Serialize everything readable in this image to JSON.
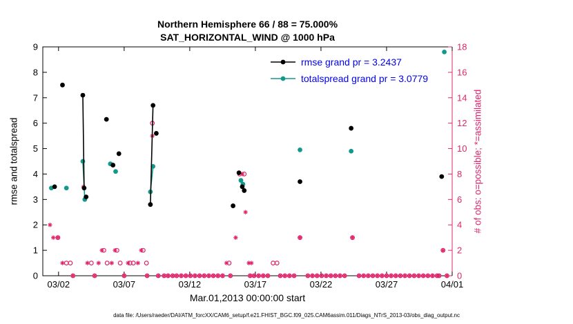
{
  "header": {
    "title_line1": "Northern Hemisphere 66 / 88 = 75.000%",
    "title_line2": "SAT_HORIZONTAL_WIND @ 1000 hPa"
  },
  "axes": {
    "xlabel": "Mar.01,2013 00:00:00 start",
    "ylabel_left": "rmse and totalspread",
    "ylabel_right": "# of obs: o=possible; *=assimilated"
  },
  "legend": {
    "items": [
      {
        "label": "rmse grand pr = 3.2437",
        "series": "rmse"
      },
      {
        "label": "totalspread grand pr = 3.0779",
        "series": "totalspread"
      }
    ]
  },
  "footer": {
    "text": "data file: /Users/raeder/DAI/ATM_forcXX/CAM6_setup/f.e21.FHIST_BGC.f09_025.CAM6assim.011/Diags_NTrS_2013-03/obs_diag_output.nc"
  },
  "colors": {
    "rmse": "#000000",
    "totalspread": "#12998c",
    "obs": "#e0246a",
    "legend_text": "#0000ee",
    "frame": "#000000"
  },
  "chart_data": {
    "type": "line",
    "x_domain_days": [
      0.8,
      32
    ],
    "x_unit": "day of March 2013 (32 = Apr 1)",
    "xticks": [
      {
        "day": 2,
        "label": "03/02"
      },
      {
        "day": 7,
        "label": "03/07"
      },
      {
        "day": 12,
        "label": "03/12"
      },
      {
        "day": 17,
        "label": "03/17"
      },
      {
        "day": 22,
        "label": "03/22"
      },
      {
        "day": 27,
        "label": "03/27"
      },
      {
        "day": 32,
        "label": "04/01"
      }
    ],
    "left_axis": {
      "range": [
        0,
        9
      ],
      "ticks": [
        0,
        1,
        2,
        3,
        4,
        5,
        6,
        7,
        8,
        9
      ]
    },
    "right_axis": {
      "range": [
        0,
        18
      ],
      "ticks": [
        0,
        2,
        4,
        6,
        8,
        10,
        12,
        14,
        16,
        18
      ]
    },
    "rmse": {
      "grand_pr": 3.2437,
      "polylines": [
        [
          [
            1.7,
            3.5
          ]
        ],
        [
          [
            2.3,
            7.5
          ]
        ],
        [
          [
            3.85,
            7.1
          ],
          [
            3.95,
            3.45
          ]
        ],
        [
          [
            4.1,
            3.1
          ]
        ],
        [
          [
            5.65,
            6.15
          ]
        ],
        [
          [
            6.15,
            4.35
          ]
        ],
        [
          [
            6.6,
            4.8
          ]
        ],
        [
          [
            9.0,
            2.8
          ],
          [
            9.2,
            6.7
          ]
        ],
        [
          [
            9.45,
            5.6
          ]
        ],
        [
          [
            15.3,
            2.75
          ]
        ],
        [
          [
            15.75,
            4.05
          ]
        ],
        [
          [
            16.0,
            3.5
          ],
          [
            16.15,
            3.35
          ]
        ],
        [
          [
            20.4,
            3.7
          ]
        ],
        [
          [
            24.3,
            5.8
          ]
        ],
        [
          [
            31.2,
            3.9
          ]
        ]
      ]
    },
    "totalspread": {
      "grand_pr": 3.0779,
      "polylines": [
        [
          [
            1.45,
            3.45
          ]
        ],
        [
          [
            2.6,
            3.45
          ]
        ],
        [
          [
            3.85,
            4.5
          ],
          [
            4.0,
            3.0
          ]
        ],
        [
          [
            5.95,
            4.4
          ]
        ],
        [
          [
            6.35,
            4.1
          ]
        ],
        [
          [
            9.0,
            3.3
          ],
          [
            9.2,
            4.3
          ]
        ],
        [
          [
            15.9,
            3.75
          ],
          [
            16.05,
            3.6
          ]
        ],
        [
          [
            20.4,
            4.95
          ]
        ],
        [
          [
            24.3,
            4.9
          ]
        ],
        [
          [
            31.4,
            8.8
          ]
        ]
      ]
    },
    "obs_possible": [
      [
        1.95,
        3
      ],
      [
        2.6,
        1
      ],
      [
        2.9,
        1
      ],
      [
        4.5,
        1
      ],
      [
        5.45,
        2
      ],
      [
        5.7,
        1
      ],
      [
        6.45,
        2
      ],
      [
        6.7,
        1
      ],
      [
        7.45,
        1
      ],
      [
        7.7,
        1
      ],
      [
        8.45,
        2
      ],
      [
        8.7,
        1
      ],
      [
        9.15,
        12
      ],
      [
        15.0,
        1
      ],
      [
        15.8,
        8
      ],
      [
        16.15,
        8
      ],
      [
        18.35,
        1
      ],
      [
        18.65,
        1
      ],
      [
        20.4,
        3
      ],
      [
        24.4,
        3
      ],
      [
        31.3,
        2
      ]
    ],
    "obs_assimilated": [
      [
        1.35,
        4
      ],
      [
        1.6,
        3
      ],
      [
        1.95,
        3
      ],
      [
        2.3,
        1
      ],
      [
        3.9,
        7
      ],
      [
        4.2,
        1
      ],
      [
        5.05,
        1
      ],
      [
        5.3,
        2
      ],
      [
        6.05,
        1
      ],
      [
        6.3,
        2
      ],
      [
        7.3,
        1
      ],
      [
        8.05,
        1
      ],
      [
        8.3,
        2
      ],
      [
        9.15,
        11
      ],
      [
        14.8,
        1
      ],
      [
        15.5,
        3
      ],
      [
        16.0,
        8
      ],
      [
        16.25,
        5
      ],
      [
        16.5,
        1
      ],
      [
        16.7,
        1
      ],
      [
        20.4,
        3
      ],
      [
        24.4,
        3
      ],
      [
        31.3,
        2
      ]
    ],
    "obs_zero_days": [
      3.1,
      4.75,
      7.0,
      8.75,
      9.6,
      10.05,
      10.35,
      10.7,
      11.0,
      11.35,
      11.7,
      12.05,
      12.4,
      12.75,
      13.1,
      13.45,
      13.8,
      14.15,
      14.5,
      15.1,
      16.6,
      16.9,
      17.25,
      17.6,
      17.95,
      18.9,
      19.25,
      19.6,
      19.95,
      21.0,
      21.35,
      21.7,
      22.05,
      22.4,
      22.75,
      23.1,
      23.45,
      23.8,
      24.9,
      25.25,
      25.6,
      25.95,
      26.3,
      26.65,
      27.0,
      27.35,
      27.7,
      28.05,
      28.4,
      28.75,
      29.1,
      29.45,
      29.8,
      30.15,
      30.5,
      30.85,
      31.0,
      31.6
    ]
  }
}
